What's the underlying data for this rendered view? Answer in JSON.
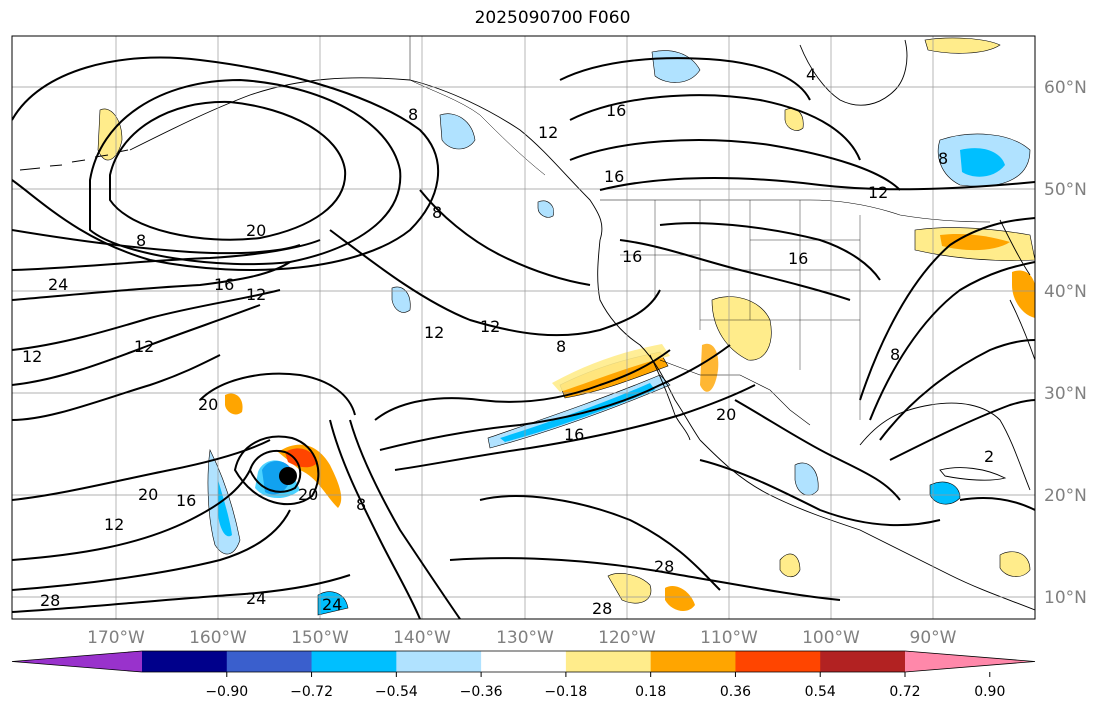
{
  "title": "2025090700 F060",
  "longitude_labels": [
    "170°W",
    "160°W",
    "150°W",
    "140°W",
    "130°W",
    "120°W",
    "110°W",
    "100°W",
    "90°W"
  ],
  "latitude_labels": [
    "60°N",
    "50°N",
    "40°N",
    "30°N",
    "20°N",
    "10°N"
  ],
  "contour_labels": [
    "8",
    "20",
    "16",
    "12",
    "24",
    "12",
    "12",
    "8",
    "12",
    "8",
    "12",
    "16",
    "16",
    "16",
    "16",
    "12",
    "8",
    "8",
    "16",
    "20",
    "2",
    "28",
    "28",
    "24",
    "24",
    "20",
    "8",
    "12",
    "16",
    "20",
    "20",
    "28",
    "4",
    "12",
    "8"
  ],
  "colorbar": {
    "colors": [
      "#9932cc",
      "#00008b",
      "#3a5fcd",
      "#00bfff",
      "#b0e2ff",
      "#ffffff",
      "#ffec8b",
      "#ffa500",
      "#ff4500",
      "#b22222",
      "#ff88aa"
    ],
    "tick_labels": [
      "−0.90",
      "−0.72",
      "−0.54",
      "−0.36",
      "−0.18",
      "0.18",
      "0.36",
      "0.54",
      "0.72",
      "0.90"
    ]
  }
}
